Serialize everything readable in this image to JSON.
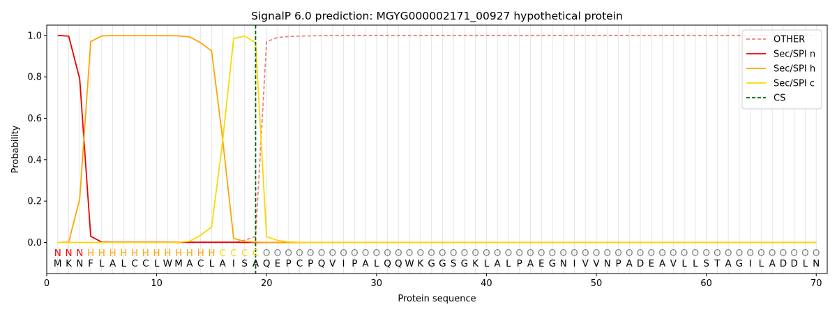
{
  "chart_data": {
    "type": "line",
    "title": "SignalP 6.0 prediction: MGYG000002171_00927 hypothetical protein",
    "xlabel": "Protein sequence",
    "ylabel": "Probability",
    "xlim": [
      0,
      71
    ],
    "ylim": [
      -0.15,
      1.05
    ],
    "xticks": [
      0,
      10,
      20,
      30,
      40,
      50,
      60,
      70
    ],
    "yticks": [
      0.0,
      0.2,
      0.4,
      0.6,
      0.8,
      1.0
    ],
    "xtick_labels": [
      "0",
      "10",
      "20",
      "30",
      "40",
      "50",
      "60",
      "70"
    ],
    "ytick_labels": [
      "0.0",
      "0.2",
      "0.4",
      "0.6",
      "0.8",
      "1.0"
    ],
    "legend_position": "top-right",
    "sequence": [
      "M",
      "K",
      "N",
      "F",
      "L",
      "A",
      "L",
      "C",
      "C",
      "L",
      "W",
      "M",
      "A",
      "C",
      "L",
      "A",
      "I",
      "S",
      "A",
      "Q",
      "E",
      "P",
      "C",
      "P",
      "Q",
      "V",
      "I",
      "P",
      "A",
      "L",
      "Q",
      "Q",
      "W",
      "K",
      "G",
      "G",
      "S",
      "G",
      "K",
      "L",
      "A",
      "L",
      "P",
      "A",
      "E",
      "G",
      "N",
      "I",
      "V",
      "V",
      "N",
      "P",
      "A",
      "D",
      "E",
      "A",
      "V",
      "L",
      "L",
      "S",
      "T",
      "A",
      "G",
      "I",
      "L",
      "A",
      "D",
      "D",
      "L",
      "N"
    ],
    "region_labels": [
      "N",
      "N",
      "N",
      "H",
      "H",
      "H",
      "H",
      "H",
      "H",
      "H",
      "H",
      "H",
      "H",
      "H",
      "H",
      "C",
      "C",
      "C",
      "C",
      "O",
      "O",
      "O",
      "O",
      "O",
      "O",
      "O",
      "O",
      "O",
      "O",
      "O",
      "O",
      "O",
      "O",
      "O",
      "O",
      "O",
      "O",
      "O",
      "O",
      "O",
      "O",
      "O",
      "O",
      "O",
      "O",
      "O",
      "O",
      "O",
      "O",
      "O",
      "O",
      "O",
      "O",
      "O",
      "O",
      "O",
      "O",
      "O",
      "O",
      "O",
      "O",
      "O",
      "O",
      "O",
      "O",
      "O",
      "O",
      "O",
      "O",
      "O"
    ],
    "region_colors": {
      "N": "#ff0000",
      "H": "#ffa500",
      "C": "#ffd700",
      "O": "#808080"
    },
    "cleavage_site": 19,
    "series": [
      {
        "name": "OTHER",
        "color": "#f08080",
        "dash": "dashed",
        "values": [
          0.0,
          0.0,
          0.0,
          0.0,
          0.0,
          0.0,
          0.0,
          0.0,
          0.0,
          0.0,
          0.0,
          0.0,
          0.0,
          0.0,
          0.0,
          0.0,
          0.0,
          0.01,
          0.03,
          0.97,
          0.99,
          0.995,
          0.997,
          0.998,
          0.999,
          1.0,
          1.0,
          1.0,
          1.0,
          1.0,
          1.0,
          1.0,
          1.0,
          1.0,
          1.0,
          1.0,
          1.0,
          1.0,
          1.0,
          1.0,
          1.0,
          1.0,
          1.0,
          1.0,
          1.0,
          1.0,
          1.0,
          1.0,
          1.0,
          1.0,
          1.0,
          1.0,
          1.0,
          1.0,
          1.0,
          1.0,
          1.0,
          1.0,
          1.0,
          1.0,
          1.0,
          1.0,
          1.0,
          1.0,
          1.0,
          1.0,
          1.0,
          1.0,
          1.0,
          1.0
        ]
      },
      {
        "name": "Sec/SPI n",
        "color": "#ee0000",
        "dash": "solid",
        "values": [
          1.0,
          0.997,
          0.79,
          0.03,
          0.002,
          0.001,
          0.001,
          0.001,
          0.001,
          0.001,
          0.001,
          0.001,
          0.001,
          0.001,
          0.001,
          0.001,
          0.001,
          0.0,
          0.0,
          0.0,
          0.0,
          0.0,
          0.0,
          0.0,
          0.0,
          0.0,
          0.0,
          0.0,
          0.0,
          0.0,
          0.0,
          0.0,
          0.0,
          0.0,
          0.0,
          0.0,
          0.0,
          0.0,
          0.0,
          0.0,
          0.0,
          0.0,
          0.0,
          0.0,
          0.0,
          0.0,
          0.0,
          0.0,
          0.0,
          0.0,
          0.0,
          0.0,
          0.0,
          0.0,
          0.0,
          0.0,
          0.0,
          0.0,
          0.0,
          0.0,
          0.0,
          0.0,
          0.0,
          0.0,
          0.0,
          0.0,
          0.0,
          0.0,
          0.0,
          0.0
        ]
      },
      {
        "name": "Sec/SPI h",
        "color": "#ffa500",
        "dash": "solid",
        "values": [
          0.0,
          0.002,
          0.21,
          0.97,
          0.998,
          0.999,
          0.999,
          0.999,
          0.999,
          0.999,
          0.999,
          0.998,
          0.993,
          0.965,
          0.925,
          0.5,
          0.02,
          0.005,
          0.002,
          0.0,
          0.0,
          0.0,
          0.0,
          0.0,
          0.0,
          0.0,
          0.0,
          0.0,
          0.0,
          0.0,
          0.0,
          0.0,
          0.0,
          0.0,
          0.0,
          0.0,
          0.0,
          0.0,
          0.0,
          0.0,
          0.0,
          0.0,
          0.0,
          0.0,
          0.0,
          0.0,
          0.0,
          0.0,
          0.0,
          0.0,
          0.0,
          0.0,
          0.0,
          0.0,
          0.0,
          0.0,
          0.0,
          0.0,
          0.0,
          0.0,
          0.0,
          0.0,
          0.0,
          0.0,
          0.0,
          0.0,
          0.0,
          0.0,
          0.0,
          0.0
        ]
      },
      {
        "name": "Sec/SPI c",
        "color": "#ffd700",
        "dash": "solid",
        "values": [
          0.0,
          0.0,
          0.0,
          0.0,
          0.0,
          0.0,
          0.0,
          0.0,
          0.0,
          0.0,
          0.0,
          0.001,
          0.006,
          0.035,
          0.075,
          0.49,
          0.985,
          0.997,
          0.965,
          0.028,
          0.01,
          0.003,
          0.001,
          0.0,
          0.0,
          0.0,
          0.0,
          0.0,
          0.0,
          0.0,
          0.0,
          0.0,
          0.0,
          0.0,
          0.0,
          0.0,
          0.0,
          0.0,
          0.0,
          0.0,
          0.0,
          0.0,
          0.0,
          0.0,
          0.0,
          0.0,
          0.0,
          0.0,
          0.0,
          0.0,
          0.0,
          0.0,
          0.0,
          0.0,
          0.0,
          0.0,
          0.0,
          0.0,
          0.0,
          0.0,
          0.0,
          0.0,
          0.0,
          0.0,
          0.0,
          0.0,
          0.0,
          0.0,
          0.0,
          0.0
        ]
      },
      {
        "name": "CS",
        "color": "#006400",
        "dash": "dashed",
        "kind": "vline"
      }
    ]
  }
}
